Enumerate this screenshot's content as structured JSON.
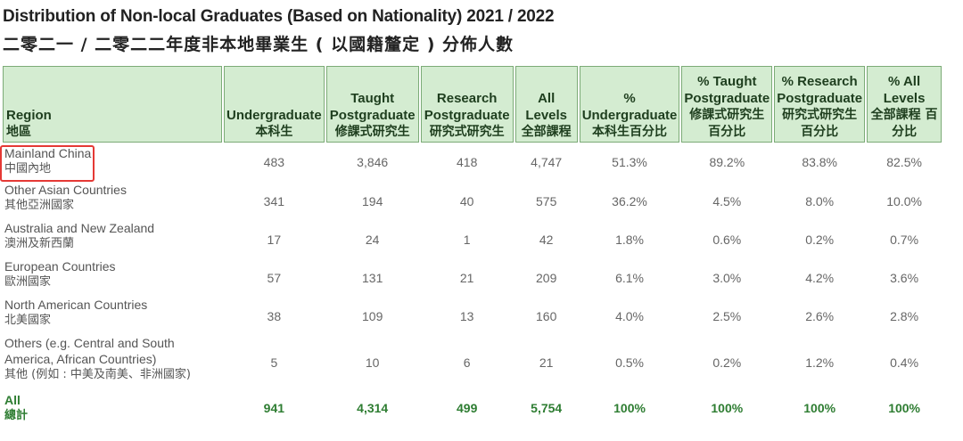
{
  "title_en": "Distribution of Non-local Graduates (Based on Nationality) 2021 / 2022",
  "title_zh": "二零二一 / 二零二二年度非本地畢業生 ( 以國籍釐定 ) 分佈人數",
  "headers": [
    {
      "en": "Region",
      "zh": "地區"
    },
    {
      "en": "Undergraduate",
      "zh": "本科生"
    },
    {
      "en": "Taught Postgraduate",
      "zh": "修課式研究生"
    },
    {
      "en": "Research Postgraduate",
      "zh": "研究式研究生"
    },
    {
      "en": "All Levels",
      "zh": "全部課程"
    },
    {
      "en": "% Undergraduate",
      "zh": "本科生百分比"
    },
    {
      "en": "% Taught Postgraduate",
      "zh": "修課式研究生 百分比"
    },
    {
      "en": "% Research Postgraduate",
      "zh": "研究式研究生 百分比"
    },
    {
      "en": "% All Levels",
      "zh": "全部課程 百分比"
    }
  ],
  "rows": [
    {
      "en": "Mainland China",
      "zh": "中國內地",
      "values": [
        "483",
        "3,846",
        "418",
        "4,747",
        "51.3%",
        "89.2%",
        "83.8%",
        "82.5%"
      ]
    },
    {
      "en": "Other Asian Countries",
      "zh": "其他亞洲國家",
      "values": [
        "341",
        "194",
        "40",
        "575",
        "36.2%",
        "4.5%",
        "8.0%",
        "10.0%"
      ]
    },
    {
      "en": "Australia and New Zealand",
      "zh": "澳洲及新西蘭",
      "values": [
        "17",
        "24",
        "1",
        "42",
        "1.8%",
        "0.6%",
        "0.2%",
        "0.7%"
      ]
    },
    {
      "en": "European Countries",
      "zh": "歐洲國家",
      "values": [
        "57",
        "131",
        "21",
        "209",
        "6.1%",
        "3.0%",
        "4.2%",
        "3.6%"
      ]
    },
    {
      "en": "North American Countries",
      "zh": "北美國家",
      "values": [
        "38",
        "109",
        "13",
        "160",
        "4.0%",
        "2.5%",
        "2.6%",
        "2.8%"
      ]
    },
    {
      "en": "Others (e.g. Central and South America, African Countries)",
      "zh": "其他 (例如 : 中美及南美、非洲國家)",
      "values": [
        "5",
        "10",
        "6",
        "21",
        "0.5%",
        "0.2%",
        "1.2%",
        "0.4%"
      ]
    }
  ],
  "total": {
    "en": "All",
    "zh": "總計",
    "values": [
      "941",
      "4,314",
      "499",
      "5,754",
      "100%",
      "100%",
      "100%",
      "100%"
    ]
  }
}
